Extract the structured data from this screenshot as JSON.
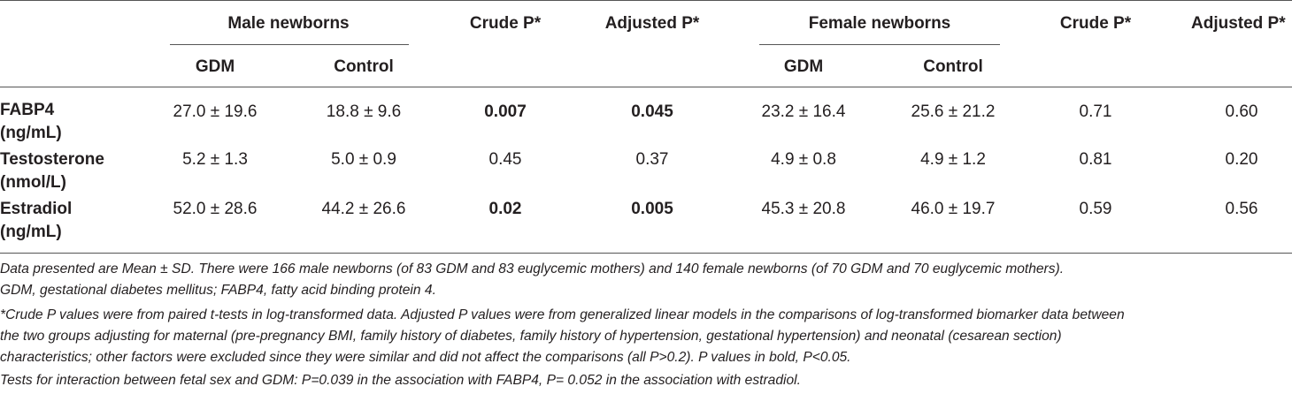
{
  "table": {
    "header": {
      "male_group": "Male newborns",
      "female_group": "Female newborns",
      "crude_p": "Crude P*",
      "adjusted_p": "Adjusted P*",
      "gdm": "GDM",
      "control": "Control"
    },
    "rows": [
      {
        "label_line1": "FABP4",
        "label_line2": "(ng/mL)",
        "male_gdm": "27.0 ± 19.6",
        "male_control": "18.8 ± 9.6",
        "male_crude_p": "0.007",
        "male_adjusted_p": "0.045",
        "female_gdm": "23.2 ± 16.4",
        "female_control": "25.6 ± 21.2",
        "female_crude_p": "0.71",
        "female_adjusted_p": "0.60"
      },
      {
        "label_line1": "Testosterone",
        "label_line2": "(nmol/L)",
        "male_gdm": "5.2 ± 1.3",
        "male_control": "5.0 ± 0.9",
        "male_crude_p": "0.45",
        "male_adjusted_p": "0.37",
        "female_gdm": "4.9 ± 0.8",
        "female_control": "4.9 ± 1.2",
        "female_crude_p": "0.81",
        "female_adjusted_p": "0.20"
      },
      {
        "label_line1": "Estradiol",
        "label_line2": "(ng/mL)",
        "male_gdm": "52.0 ± 28.6",
        "male_control": "44.2 ± 26.6",
        "male_crude_p": "0.02",
        "male_adjusted_p": "0.005",
        "female_gdm": "45.3 ± 20.8",
        "female_control": "46.0 ± 19.7",
        "female_crude_p": "0.59",
        "female_adjusted_p": "0.56"
      }
    ],
    "footnotes": [
      "Data presented are Mean ± SD. There were 166 male newborns (of 83 GDM and 83 euglycemic mothers) and 140 female newborns (of 70 GDM and 70 euglycemic mothers).",
      "GDM, gestational diabetes mellitus; FABP4, fatty acid binding protein 4.",
      "*Crude P values were from paired t-tests in log-transformed data. Adjusted P values were from generalized linear models in the comparisons of log-transformed biomarker data between",
      "the two groups adjusting for maternal (pre-pregnancy BMI, family history of diabetes, family history of hypertension, gestational hypertension) and neonatal (cesarean section)",
      "characteristics; other factors were excluded since they were similar and did not affect the comparisons (all P>0.2). P values in bold, P<0.05.",
      "Tests for interaction between fetal sex and GDM: P=0.039 in the association with FABP4, P= 0.052 in the association with estradiol."
    ]
  }
}
